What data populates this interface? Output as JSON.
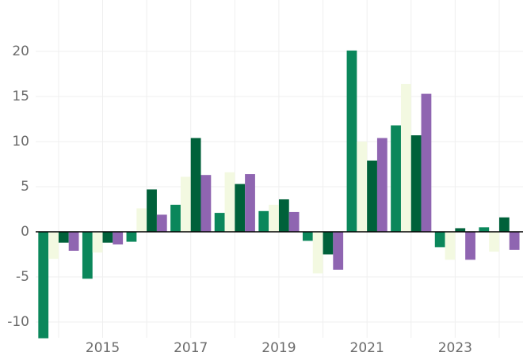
{
  "chart_data": {
    "type": "bar",
    "x": [
      2014,
      2015,
      2016,
      2017,
      2018,
      2019,
      2020,
      2021,
      2022,
      2023,
      2024
    ],
    "series": [
      {
        "color": "#0b875b",
        "values": [
          -11.8,
          -5.2,
          -1.1,
          3.0,
          2.1,
          2.3,
          -1.0,
          20.1,
          11.8,
          -1.7,
          0.5
        ]
      },
      {
        "color": "#f3f9e1",
        "values": [
          -3.0,
          -2.3,
          2.6,
          6.1,
          6.6,
          3.0,
          -4.6,
          10.0,
          16.4,
          -3.1,
          -2.2
        ]
      },
      {
        "color": "#00613a",
        "values": [
          -1.2,
          -1.2,
          4.7,
          10.4,
          5.3,
          3.6,
          -2.5,
          7.9,
          10.7,
          0.4,
          1.6
        ]
      },
      {
        "color": "#8f65b1",
        "values": [
          -2.1,
          -1.4,
          1.9,
          6.3,
          6.4,
          2.2,
          -4.2,
          10.4,
          15.3,
          -3.1,
          -2.0
        ]
      }
    ],
    "xlim": [
      2013.48,
      2024.54
    ],
    "xticks": [
      2015,
      2017,
      2019,
      2021,
      2023
    ],
    "ylim": [
      -11.75,
      25.7
    ],
    "yticks": [
      -10,
      -5,
      0,
      5,
      10,
      15,
      20
    ],
    "grid": true
  }
}
